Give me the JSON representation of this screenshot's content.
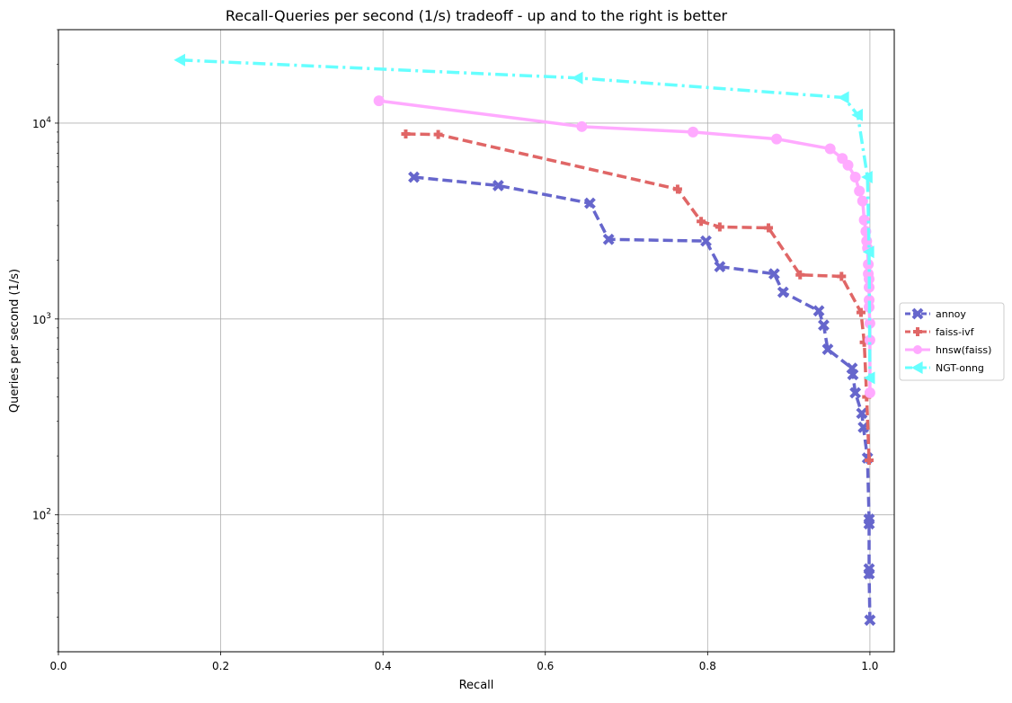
{
  "chart_data": {
    "type": "line",
    "title": "Recall-Queries per second (1/s) tradeoff - up and to the right is better",
    "xlabel": "Recall",
    "ylabel": "Queries per second (1/s)",
    "xlim": [
      0.0,
      1.03
    ],
    "ylim": [
      20,
      30000
    ],
    "yscale": "log",
    "grid": true,
    "legend_position": "center-right (outside)",
    "xticks": [
      0.0,
      0.2,
      0.4,
      0.6,
      0.8,
      1.0
    ],
    "xtick_labels": [
      "0.0",
      "0.2",
      "0.4",
      "0.6",
      "0.8",
      "1.0"
    ],
    "yticks": [
      {
        "value": 100,
        "base": "10",
        "exp": "2"
      },
      {
        "value": 1000,
        "base": "10",
        "exp": "3"
      },
      {
        "value": 10000,
        "base": "10",
        "exp": "4"
      }
    ],
    "series": [
      {
        "name": "annoy",
        "color": "#6666cc",
        "marker": "x",
        "linestyle": "dashed",
        "points": [
          [
            0.438,
            5300
          ],
          [
            0.542,
            4800
          ],
          [
            0.655,
            3900
          ],
          [
            0.678,
            2550
          ],
          [
            0.798,
            2500
          ],
          [
            0.815,
            1850
          ],
          [
            0.882,
            1700
          ],
          [
            0.893,
            1370
          ],
          [
            0.937,
            1100
          ],
          [
            0.943,
            930
          ],
          [
            0.948,
            700
          ],
          [
            0.978,
            560
          ],
          [
            0.979,
            520
          ],
          [
            0.982,
            420
          ],
          [
            0.99,
            330
          ],
          [
            0.992,
            280
          ],
          [
            0.997,
            195
          ],
          [
            0.999,
            95
          ],
          [
            0.999,
            90
          ],
          [
            0.999,
            53
          ],
          [
            0.999,
            50
          ],
          [
            1.0,
            29
          ]
        ]
      },
      {
        "name": "faiss-ivf",
        "color": "#e06666",
        "marker": "plus",
        "linestyle": "dashed",
        "points": [
          [
            0.428,
            8800
          ],
          [
            0.468,
            8750
          ],
          [
            0.763,
            4600
          ],
          [
            0.792,
            3150
          ],
          [
            0.815,
            2950
          ],
          [
            0.875,
            2920
          ],
          [
            0.914,
            1680
          ],
          [
            0.965,
            1650
          ],
          [
            0.989,
            1080
          ],
          [
            0.993,
            760
          ],
          [
            0.996,
            400
          ],
          [
            0.999,
            190
          ]
        ]
      },
      {
        "name": "hnsw(faiss)",
        "color": "#ffaaff",
        "marker": "circle",
        "linestyle": "solid",
        "points": [
          [
            0.395,
            13000
          ],
          [
            0.645,
            9600
          ],
          [
            0.782,
            9000
          ],
          [
            0.885,
            8300
          ],
          [
            0.951,
            7400
          ],
          [
            0.966,
            6600
          ],
          [
            0.973,
            6100
          ],
          [
            0.982,
            5300
          ],
          [
            0.987,
            4500
          ],
          [
            0.991,
            4000
          ],
          [
            0.993,
            3200
          ],
          [
            0.995,
            2800
          ],
          [
            0.996,
            2500
          ],
          [
            0.997,
            2300
          ],
          [
            0.998,
            1900
          ],
          [
            0.998,
            1700
          ],
          [
            0.999,
            1600
          ],
          [
            0.999,
            1450
          ],
          [
            0.999,
            1250
          ],
          [
            0.999,
            1150
          ],
          [
            1.0,
            950
          ],
          [
            1.0,
            780
          ],
          [
            1.0,
            420
          ]
        ]
      },
      {
        "name": "NGT-onng",
        "color": "#66ffff",
        "marker": "triangle-left",
        "linestyle": "dashdot",
        "points": [
          [
            0.15,
            21000
          ],
          [
            0.64,
            17000
          ],
          [
            0.968,
            13500
          ],
          [
            0.985,
            11000
          ],
          [
            0.997,
            5300
          ],
          [
            0.999,
            2200
          ],
          [
            1.0,
            500
          ]
        ]
      }
    ]
  }
}
